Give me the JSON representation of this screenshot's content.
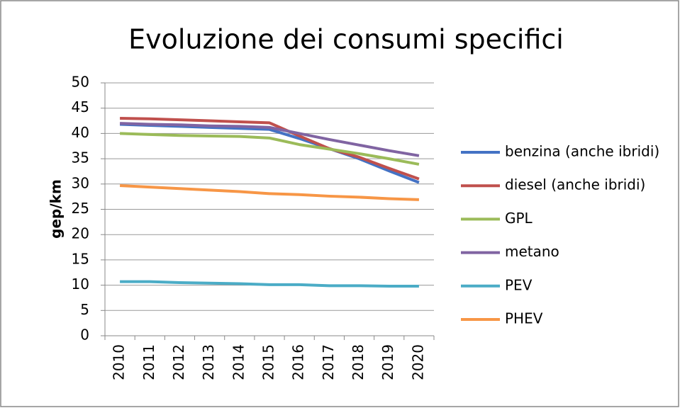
{
  "chart_data": {
    "type": "line",
    "title": "Evoluzione dei consumi specifici",
    "ylabel": "gep/km",
    "categories": [
      "2010",
      "2011",
      "2012",
      "2013",
      "2014",
      "2015",
      "2016",
      "2017",
      "2018",
      "2019",
      "2020"
    ],
    "series": [
      {
        "name": "benzina (anche ibridi)",
        "color": "#4472c4",
        "values": [
          41.8,
          41.6,
          41.4,
          41.2,
          41.0,
          40.8,
          39.0,
          37.0,
          35.0,
          32.6,
          30.3
        ]
      },
      {
        "name": "diesel (anche ibridi)",
        "color": "#c0504d",
        "values": [
          43.0,
          42.9,
          42.7,
          42.5,
          42.3,
          42.1,
          39.5,
          37.0,
          35.3,
          33.1,
          31.0
        ]
      },
      {
        "name": "GPL",
        "color": "#9bbb59",
        "values": [
          40.0,
          39.8,
          39.6,
          39.5,
          39.4,
          39.1,
          37.8,
          36.9,
          36.0,
          35.0,
          33.9
        ]
      },
      {
        "name": "metano",
        "color": "#8064a2",
        "values": [
          42.0,
          41.8,
          41.7,
          41.5,
          41.4,
          41.2,
          40.0,
          38.8,
          37.7,
          36.6,
          35.6
        ]
      },
      {
        "name": "PEV",
        "color": "#4bacc6",
        "values": [
          10.7,
          10.7,
          10.5,
          10.4,
          10.3,
          10.1,
          10.1,
          9.9,
          9.9,
          9.8,
          9.8
        ]
      },
      {
        "name": "PHEV",
        "color": "#f79646",
        "values": [
          29.7,
          29.4,
          29.1,
          28.8,
          28.5,
          28.1,
          27.9,
          27.6,
          27.4,
          27.1,
          26.9
        ]
      }
    ],
    "ylim": [
      0,
      50
    ],
    "yticks": [
      0,
      5,
      10,
      15,
      20,
      25,
      30,
      35,
      40,
      45,
      50
    ],
    "grid": true,
    "legend": "right"
  }
}
